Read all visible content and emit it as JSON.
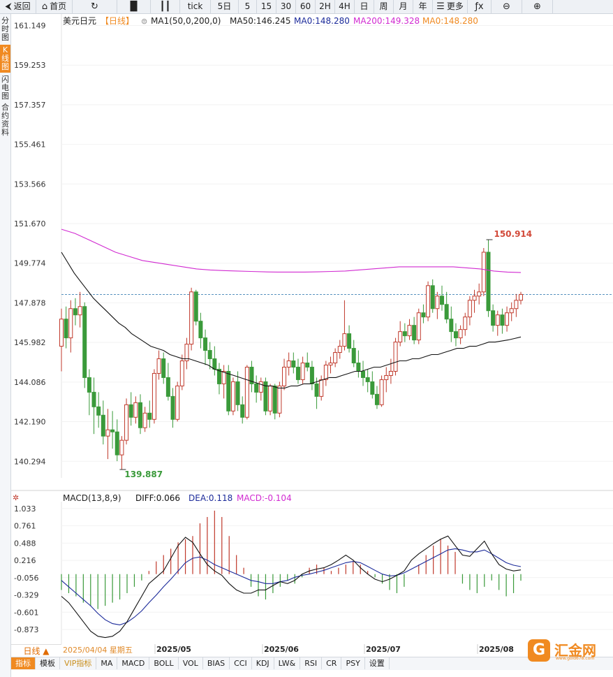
{
  "toolbar": [
    {
      "label": "返回",
      "icon": "back-icon"
    },
    {
      "label": "首页",
      "icon": "home-icon"
    },
    {
      "label": "",
      "icon": "refresh-icon"
    },
    {
      "label": "",
      "icon": "bar-chart-icon"
    },
    {
      "label": "",
      "icon": "candlestick-icon"
    },
    {
      "label": "tick",
      "icon": ""
    },
    {
      "label": "5日",
      "icon": ""
    },
    {
      "label": "5",
      "icon": ""
    },
    {
      "label": "15",
      "icon": ""
    },
    {
      "label": "30",
      "icon": ""
    },
    {
      "label": "60",
      "icon": ""
    },
    {
      "label": "2H",
      "icon": ""
    },
    {
      "label": "4H",
      "icon": ""
    },
    {
      "label": "日",
      "icon": ""
    },
    {
      "label": "周",
      "icon": ""
    },
    {
      "label": "月",
      "icon": ""
    },
    {
      "label": "年",
      "icon": ""
    },
    {
      "label": "更多",
      "icon": "menu-icon"
    },
    {
      "label": "",
      "icon": "fx-icon"
    },
    {
      "label": "",
      "icon": "zoom-out-icon"
    },
    {
      "label": "",
      "icon": "zoom-in-icon"
    }
  ],
  "sidebar": [
    "分时图",
    "K线图",
    "闪电图",
    "合约资料"
  ],
  "chart_data": [
    {
      "type": "candlestick",
      "title": "美元日元",
      "period": "【日线】",
      "legend": [
        {
          "text": "MA1(50,0,200,0)",
          "color": "#222222"
        },
        {
          "text": "MA50:146.245",
          "color": "#222222"
        },
        {
          "text": "MA0:148.280",
          "color": "#1b2a9a"
        },
        {
          "text": "MA200:149.328",
          "color": "#d12ad1"
        },
        {
          "text": "MA0:148.280",
          "color": "#f08a21"
        }
      ],
      "y_ticks": [
        "161.149",
        "159.253",
        "157.357",
        "155.461",
        "153.566",
        "151.670",
        "149.774",
        "147.878",
        "145.982",
        "144.086",
        "142.190",
        "140.294"
      ],
      "ylim": [
        139.5,
        161.5
      ],
      "x_labels": [
        "2025/05",
        "2025/06",
        "2025/07",
        "2025/08"
      ],
      "current_price": 148.28,
      "high_marker": "150.914",
      "low_marker": "139.887",
      "colors": {
        "up": "#c0392b",
        "down": "#3a9a3a",
        "ma50": "#111111",
        "ma200": "#d12ad1",
        "price_line": "#1f6fa8"
      },
      "ohlc": [
        [
          145.8,
          147.6,
          144.6,
          147.1
        ],
        [
          147.1,
          147.7,
          145.7,
          146.2
        ],
        [
          146.2,
          148.0,
          145.5,
          147.6
        ],
        [
          147.6,
          148.1,
          146.8,
          147.3
        ],
        [
          147.3,
          148.4,
          146.7,
          147.7
        ],
        [
          147.7,
          147.9,
          143.8,
          144.3
        ],
        [
          144.3,
          144.7,
          142.5,
          143.6
        ],
        [
          143.6,
          144.3,
          141.6,
          142.9
        ],
        [
          142.9,
          143.6,
          141.9,
          142.5
        ],
        [
          142.5,
          143.2,
          141.1,
          141.5
        ],
        [
          141.5,
          142.8,
          140.4,
          141.8
        ],
        [
          141.8,
          142.7,
          140.9,
          141.7
        ],
        [
          141.7,
          142.3,
          140.3,
          140.6
        ],
        [
          140.6,
          141.5,
          139.9,
          141.3
        ],
        [
          141.3,
          143.3,
          141.1,
          143.0
        ],
        [
          143.0,
          143.6,
          142.0,
          142.4
        ],
        [
          142.4,
          143.4,
          142.1,
          143.1
        ],
        [
          143.1,
          143.5,
          141.6,
          141.9
        ],
        [
          141.9,
          142.9,
          141.7,
          142.6
        ],
        [
          142.6,
          143.2,
          141.9,
          142.3
        ],
        [
          142.3,
          144.7,
          142.1,
          144.5
        ],
        [
          144.5,
          145.6,
          144.2,
          145.2
        ],
        [
          145.2,
          145.5,
          144.0,
          144.3
        ],
        [
          144.3,
          145.0,
          143.2,
          143.4
        ],
        [
          143.4,
          143.8,
          141.9,
          142.3
        ],
        [
          142.3,
          144.1,
          142.2,
          143.9
        ],
        [
          143.9,
          145.4,
          143.7,
          145.1
        ],
        [
          145.1,
          146.2,
          144.7,
          145.9
        ],
        [
          145.9,
          148.6,
          145.6,
          148.4
        ],
        [
          148.4,
          148.5,
          146.8,
          147.0
        ],
        [
          147.0,
          147.4,
          145.7,
          146.2
        ],
        [
          146.2,
          146.6,
          144.9,
          145.6
        ],
        [
          145.6,
          146.0,
          144.7,
          145.2
        ],
        [
          145.2,
          145.8,
          144.4,
          144.7
        ],
        [
          144.7,
          145.0,
          143.5,
          144.0
        ],
        [
          144.0,
          144.9,
          143.3,
          144.6
        ],
        [
          144.6,
          144.9,
          142.5,
          142.7
        ],
        [
          142.7,
          144.3,
          142.5,
          144.1
        ],
        [
          144.1,
          144.6,
          142.7,
          143.0
        ],
        [
          143.0,
          143.4,
          142.1,
          142.4
        ],
        [
          142.4,
          144.9,
          142.3,
          144.8
        ],
        [
          144.8,
          145.1,
          143.6,
          144.0
        ],
        [
          144.0,
          144.4,
          143.1,
          143.6
        ],
        [
          143.6,
          144.3,
          143.2,
          144.1
        ],
        [
          144.1,
          144.3,
          142.5,
          142.7
        ],
        [
          142.7,
          144.0,
          142.5,
          143.9
        ],
        [
          143.9,
          144.0,
          142.3,
          142.6
        ],
        [
          142.6,
          144.1,
          142.4,
          143.9
        ],
        [
          143.9,
          145.2,
          143.7,
          144.8
        ],
        [
          144.8,
          145.5,
          144.4,
          145.1
        ],
        [
          145.1,
          145.5,
          144.5,
          144.8
        ],
        [
          144.8,
          145.2,
          144.0,
          144.2
        ],
        [
          144.2,
          145.3,
          144.0,
          145.0
        ],
        [
          145.0,
          145.5,
          144.6,
          144.8
        ],
        [
          144.8,
          145.1,
          143.7,
          144.0
        ],
        [
          144.0,
          144.3,
          142.8,
          143.4
        ],
        [
          143.4,
          144.4,
          143.2,
          144.2
        ],
        [
          144.2,
          145.1,
          143.9,
          144.9
        ],
        [
          144.9,
          145.3,
          144.5,
          145.0
        ],
        [
          145.0,
          145.7,
          144.8,
          145.5
        ],
        [
          145.5,
          146.1,
          145.2,
          145.8
        ],
        [
          145.8,
          148.0,
          145.6,
          146.4
        ],
        [
          146.4,
          146.8,
          145.5,
          145.7
        ],
        [
          145.7,
          146.1,
          144.8,
          145.0
        ],
        [
          145.0,
          145.6,
          144.3,
          144.6
        ],
        [
          144.6,
          145.1,
          143.9,
          144.3
        ],
        [
          144.3,
          144.7,
          143.6,
          144.1
        ],
        [
          144.1,
          144.6,
          143.3,
          143.5
        ],
        [
          143.5,
          143.9,
          142.8,
          143.0
        ],
        [
          143.0,
          144.4,
          142.9,
          144.2
        ],
        [
          144.2,
          144.8,
          143.6,
          144.4
        ],
        [
          144.4,
          145.2,
          144.0,
          144.6
        ],
        [
          144.6,
          146.2,
          144.4,
          146.0
        ],
        [
          146.0,
          147.0,
          145.8,
          146.5
        ],
        [
          146.5,
          146.9,
          146.0,
          146.3
        ],
        [
          146.3,
          147.1,
          146.1,
          146.8
        ],
        [
          146.8,
          147.2,
          145.9,
          146.1
        ],
        [
          146.1,
          147.6,
          145.9,
          147.4
        ],
        [
          147.4,
          147.8,
          146.9,
          147.2
        ],
        [
          147.2,
          148.9,
          147.0,
          148.7
        ],
        [
          148.7,
          149.0,
          147.4,
          147.6
        ],
        [
          147.6,
          148.4,
          147.1,
          148.2
        ],
        [
          148.2,
          148.7,
          147.5,
          147.8
        ],
        [
          147.8,
          148.4,
          146.9,
          147.1
        ],
        [
          147.1,
          147.7,
          146.0,
          146.5
        ],
        [
          146.5,
          146.9,
          145.8,
          146.2
        ],
        [
          146.2,
          146.8,
          145.9,
          146.6
        ],
        [
          146.6,
          147.4,
          146.3,
          147.2
        ],
        [
          147.2,
          148.2,
          146.8,
          148.0
        ],
        [
          148.0,
          148.5,
          147.4,
          148.2
        ],
        [
          148.2,
          148.8,
          147.8,
          148.4
        ],
        [
          148.4,
          150.5,
          148.2,
          150.3
        ],
        [
          150.3,
          150.9,
          147.2,
          147.5
        ],
        [
          147.5,
          147.8,
          146.5,
          146.8
        ],
        [
          146.8,
          147.5,
          146.3,
          147.3
        ],
        [
          147.3,
          147.6,
          146.4,
          146.8
        ],
        [
          146.8,
          147.7,
          146.5,
          147.4
        ],
        [
          147.4,
          147.9,
          147.0,
          147.6
        ],
        [
          147.6,
          148.3,
          147.2,
          148.0
        ],
        [
          148.0,
          148.4,
          147.8,
          148.28
        ]
      ],
      "ma50": [
        150.3,
        149.8,
        149.3,
        148.9,
        148.5,
        148.1,
        147.8,
        147.5,
        147.2,
        146.9,
        146.7,
        146.4,
        146.2,
        146.0,
        145.8,
        145.7,
        145.6,
        145.4,
        145.3,
        145.2,
        145.2,
        145.1,
        145.0,
        144.9,
        144.7,
        144.6,
        144.5,
        144.4,
        144.3,
        144.2,
        144.1,
        144.0,
        143.9,
        143.9,
        143.8,
        143.8,
        143.9,
        143.9,
        144.0,
        144.0,
        144.1,
        144.2,
        144.3,
        144.3,
        144.4,
        144.5,
        144.6,
        144.6,
        144.7,
        144.8,
        144.8,
        144.9,
        145.0,
        145.1,
        145.1,
        145.2,
        145.2,
        145.3,
        145.4,
        145.4,
        145.5,
        145.6,
        145.7,
        145.7,
        145.8,
        145.8,
        145.9,
        146.0,
        146.0,
        146.05,
        146.1,
        146.17,
        146.245
      ],
      "ma200": [
        151.4,
        151.2,
        150.9,
        150.6,
        150.3,
        150.1,
        149.9,
        149.8,
        149.7,
        149.6,
        149.5,
        149.45,
        149.42,
        149.4,
        149.38,
        149.36,
        149.35,
        149.35,
        149.35,
        149.36,
        149.38,
        149.4,
        149.45,
        149.5,
        149.55,
        149.6,
        149.6,
        149.6,
        149.6,
        149.6,
        149.55,
        149.5,
        149.4,
        149.35,
        149.328
      ],
      "macd_indicator": {
        "params": "MACD(13,8,9)",
        "values": [
          {
            "text": "DIFF:0.066",
            "color": "#111111"
          },
          {
            "text": "DEA:0.118",
            "color": "#1b2a9a"
          },
          {
            "text": "MACD:-0.104",
            "color": "#d12ad1"
          }
        ],
        "y_ticks": [
          "1.033",
          "0.761",
          "0.488",
          "0.216",
          "-0.056",
          "-0.329",
          "-0.601",
          "-0.873"
        ],
        "ylim": [
          -1.06,
          1.12
        ],
        "diff": [
          -0.35,
          -0.45,
          -0.6,
          -0.75,
          -0.9,
          -0.98,
          -1.0,
          -0.98,
          -0.9,
          -0.75,
          -0.55,
          -0.35,
          -0.15,
          -0.05,
          0.05,
          0.25,
          0.45,
          0.58,
          0.5,
          0.32,
          0.15,
          0.05,
          -0.02,
          -0.15,
          -0.25,
          -0.3,
          -0.3,
          -0.25,
          -0.25,
          -0.18,
          -0.12,
          -0.15,
          -0.1,
          0.0,
          0.05,
          0.08,
          0.1,
          0.15,
          0.22,
          0.3,
          0.22,
          0.1,
          0.0,
          -0.08,
          -0.12,
          -0.08,
          -0.02,
          0.05,
          0.22,
          0.32,
          0.4,
          0.48,
          0.55,
          0.6,
          0.45,
          0.3,
          0.28,
          0.4,
          0.52,
          0.32,
          0.15,
          0.08,
          0.05,
          0.066
        ],
        "dea": [
          -0.1,
          -0.2,
          -0.3,
          -0.4,
          -0.5,
          -0.62,
          -0.72,
          -0.78,
          -0.8,
          -0.76,
          -0.68,
          -0.58,
          -0.45,
          -0.33,
          -0.2,
          -0.08,
          0.05,
          0.18,
          0.25,
          0.27,
          0.22,
          0.15,
          0.1,
          0.05,
          0.0,
          -0.05,
          -0.1,
          -0.12,
          -0.15,
          -0.15,
          -0.12,
          -0.1,
          -0.05,
          -0.02,
          0.0,
          0.03,
          0.06,
          0.1,
          0.14,
          0.18,
          0.2,
          0.18,
          0.12,
          0.06,
          0.0,
          -0.03,
          -0.02,
          0.02,
          0.08,
          0.14,
          0.2,
          0.26,
          0.32,
          0.38,
          0.4,
          0.38,
          0.35,
          0.35,
          0.38,
          0.32,
          0.25,
          0.18,
          0.14,
          0.118
        ],
        "hist": [
          -0.25,
          -0.3,
          -0.35,
          -0.45,
          -0.5,
          -0.55,
          -0.5,
          -0.45,
          -0.4,
          -0.3,
          -0.2,
          -0.1,
          0.05,
          0.2,
          0.3,
          0.4,
          0.5,
          0.55,
          0.6,
          0.8,
          0.9,
          1.0,
          0.9,
          0.6,
          0.3,
          0.1,
          -0.2,
          -0.35,
          -0.4,
          -0.3,
          -0.2,
          -0.1,
          -0.15,
          -0.05,
          0.1,
          0.15,
          0.1,
          0.05,
          0.1,
          0.15,
          0.2,
          0.15,
          0.05,
          -0.05,
          -0.15,
          -0.25,
          -0.3,
          -0.2,
          0.0,
          0.15,
          0.3,
          0.45,
          0.55,
          0.45,
          0.35,
          -0.15,
          -0.25,
          -0.3,
          -0.2,
          -0.1,
          -0.25,
          -0.35,
          -0.3,
          -0.104
        ]
      }
    }
  ],
  "bottom": {
    "date_button": "日线 ▲",
    "hover_date": "2025/04/04 星期五",
    "tabs": [
      "指标",
      "模板",
      "VIP指标",
      "MA",
      "MACD",
      "BOLL",
      "VOL",
      "BIAS",
      "CCI",
      "KDJ",
      "LW&",
      "RSI",
      "CR",
      "PSY",
      "设置"
    ]
  },
  "brand": {
    "name": "汇金网",
    "url": "www.gold678.com"
  }
}
